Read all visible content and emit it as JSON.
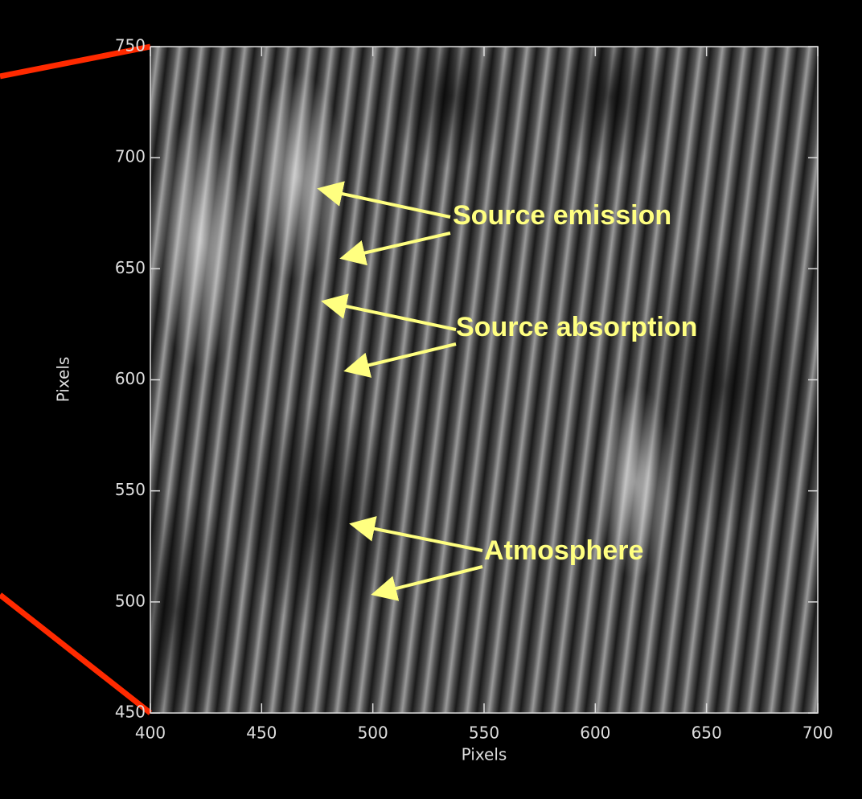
{
  "chart_data": {
    "type": "image",
    "x_label": "Pixels",
    "y_label": "Pixels",
    "xlim": [
      400,
      700
    ],
    "xticks": [
      400,
      450,
      500,
      550,
      600,
      650,
      700
    ],
    "ylim": [
      450,
      750
    ],
    "yticks": [
      450,
      500,
      550,
      600,
      650,
      700,
      750
    ],
    "annotations": [
      "Source emission",
      "Source absorption",
      "Atmosphere"
    ]
  }
}
